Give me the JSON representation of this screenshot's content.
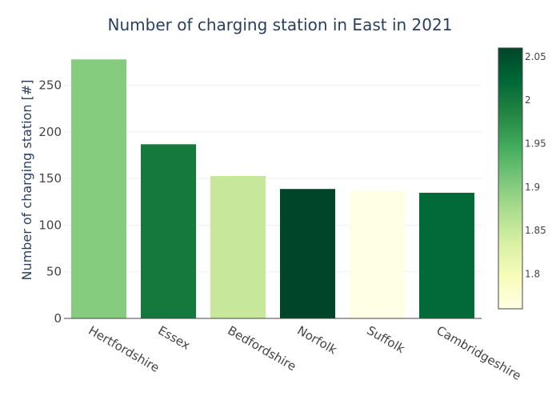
{
  "chart_data": {
    "type": "bar",
    "title": "Number of charging station in East in 2021",
    "xlabel": "",
    "ylabel": "Number of charging station [#]",
    "categories": [
      "Hertfordshire",
      "Essex",
      "Bedfordshire",
      "Norfolk",
      "Suffolk",
      "Cambridgeshire"
    ],
    "values": [
      278,
      187,
      153,
      139,
      137,
      135
    ],
    "color_values": [
      1.9,
      2.0,
      1.85,
      2.06,
      1.76,
      2.02
    ],
    "ylim": [
      0,
      290
    ],
    "yticks": [
      0,
      50,
      100,
      150,
      200,
      250
    ],
    "grid": true,
    "colorbar": {
      "range": [
        1.76,
        2.06
      ],
      "ticks": [
        1.8,
        1.85,
        1.9,
        1.95,
        2,
        2.05
      ],
      "tick_labels": [
        "1.8",
        "1.85",
        "1.9",
        "1.95",
        "2",
        "2.05"
      ],
      "colorscale": [
        "#ffffe5",
        "#f7fcb9",
        "#d9f0a3",
        "#addd8e",
        "#78c679",
        "#41ab5d",
        "#238443",
        "#006837",
        "#004529"
      ]
    }
  }
}
